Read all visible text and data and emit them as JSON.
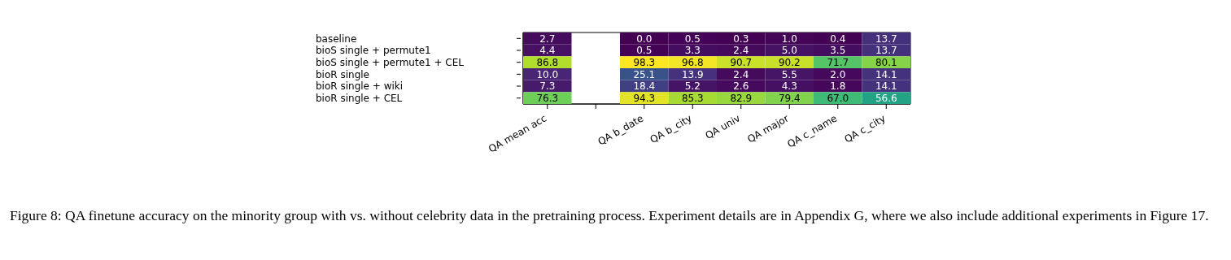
{
  "chart_data": {
    "type": "heatmap",
    "categories": [
      "QA mean acc",
      null,
      "QA b_date",
      "QA b_city",
      "QA univ",
      "QA major",
      "QA c_name",
      "QA c_city"
    ],
    "y_categories": [
      "baseline",
      "bioS single + permute1",
      "bioS single + permute1 + CEL",
      "bioR single",
      "bioR single + wiki",
      "bioR single + CEL"
    ],
    "cells": [
      [
        2.7,
        null,
        0.0,
        0.5,
        0.3,
        1.0,
        0.4,
        13.7
      ],
      [
        4.4,
        null,
        0.5,
        3.3,
        2.4,
        5.0,
        3.5,
        13.7
      ],
      [
        86.8,
        null,
        98.3,
        96.8,
        90.7,
        90.2,
        71.7,
        80.1
      ],
      [
        10.0,
        null,
        25.1,
        13.9,
        2.4,
        5.5,
        2.0,
        14.1
      ],
      [
        7.3,
        null,
        18.4,
        5.2,
        2.6,
        4.3,
        1.8,
        14.1
      ],
      [
        76.3,
        null,
        94.3,
        85.3,
        82.9,
        79.4,
        67.0,
        56.6
      ]
    ],
    "cell_labels": [
      [
        "2.7",
        null,
        "0.0",
        "0.5",
        "0.3",
        "1.0",
        "0.4",
        "13.7"
      ],
      [
        "4.4",
        null,
        "0.5",
        "3.3",
        "2.4",
        "5.0",
        "3.5",
        "13.7"
      ],
      [
        "86.8",
        null,
        "98.3",
        "96.8",
        "90.7",
        "90.2",
        "71.7",
        "80.1"
      ],
      [
        "10.0",
        null,
        "25.1",
        "13.9",
        "2.4",
        "5.5",
        "2.0",
        "14.1"
      ],
      [
        "7.3",
        null,
        "18.4",
        "5.2",
        "2.6",
        "4.3",
        "1.8",
        "14.1"
      ],
      [
        "76.3",
        null,
        "94.3",
        "85.3",
        "82.9",
        "79.4",
        "67.0",
        "56.6"
      ]
    ],
    "data_labels": true,
    "annotations": [
      "Figure 8: QA finetune accuracy on the minority group with vs. without celebrity data in the pretraining process. Experiment details are in Appendix G, where we also include additional experiments in Figure 17."
    ]
  }
}
